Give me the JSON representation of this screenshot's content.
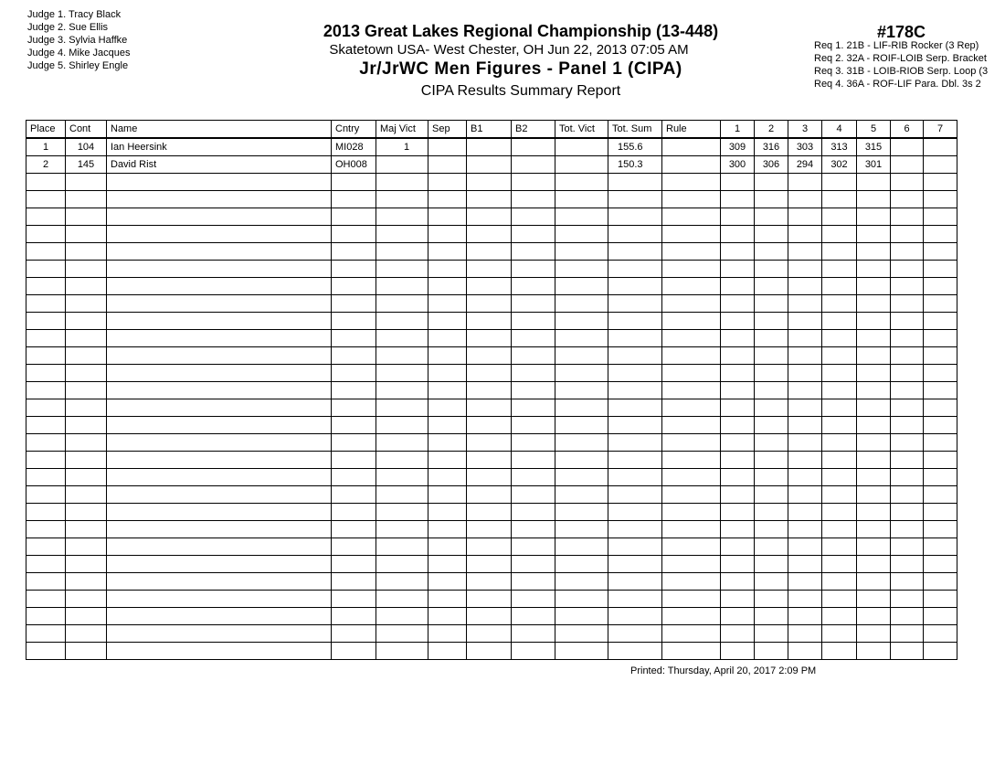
{
  "judges": [
    "Judge  1.  Tracy Black",
    "Judge  2.  Sue Ellis",
    "Judge  3.  Sylvia  Haffke",
    "Judge  4.  Mike Jacques",
    "Judge  5.  Shirley Engle"
  ],
  "header": {
    "title": "2013 Great Lakes Regional Championship (13-448)",
    "location": "Skatetown USA- West Chester, OH  Jun 22, 2013  07:05 AM",
    "event": "Jr/JrWC Men Figures - Panel 1 (CIPA)",
    "report": "CIPA Results Summary Report",
    "code": "#178C"
  },
  "requirements": [
    "Req  1.  21B - LIF-RIB Rocker (3 Rep)",
    "Req  2.  32A - ROIF-LOIB Serp. Bracket",
    "Req  3.  31B - LOIB-RIOB Serp. Loop (3",
    "Req  4.  36A - ROF-LIF Para. Dbl. 3s 2"
  ],
  "table": {
    "columns": [
      "Place",
      "Cont",
      "Name",
      "Cntry",
      "Maj Vict",
      "Sep",
      "B1",
      "B2",
      "Tot. Vict",
      "Tot. Sum",
      "Rule",
      "1",
      "2",
      "3",
      "4",
      "5",
      "6",
      "7"
    ],
    "rows": [
      [
        "1",
        "104",
        "Ian Heersink",
        "MI028",
        "1",
        "",
        "",
        "",
        "",
        "155.6",
        "",
        "309",
        "316",
        "303",
        "313",
        "315",
        "",
        ""
      ],
      [
        "2",
        "145",
        "David Rist",
        "OH008",
        "",
        "",
        "",
        "",
        "",
        "150.3",
        "",
        "300",
        "306",
        "294",
        "302",
        "301",
        "",
        ""
      ]
    ],
    "empty_rows": 28
  },
  "footer": {
    "printed": "Printed:  Thursday, April 20, 2017  2:09 PM"
  }
}
